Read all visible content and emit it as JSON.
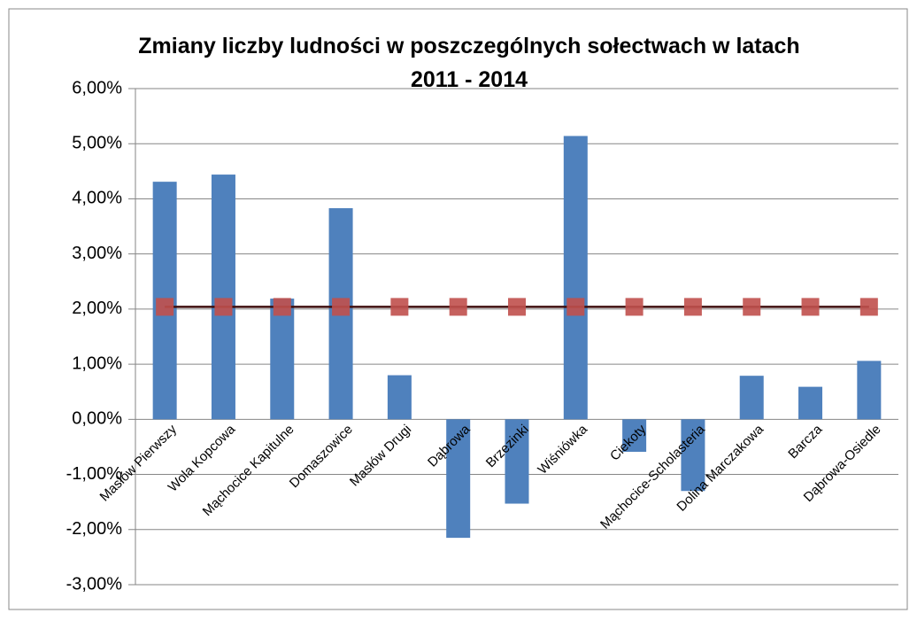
{
  "chart_data": {
    "type": "bar",
    "title": [
      "Zmiany liczby ludności w poszczególnych sołectwach w latach",
      "2011 - 2014"
    ],
    "categories": [
      "Masłów Pierwszy",
      "Wola Kopcowa",
      "Mąchocice Kapitulne",
      "Domaszowice",
      "Masłów Drugi",
      "Dąbrowa",
      "Brzezinki",
      "Wiśniówka",
      "Ciekoty",
      "Mąchocice-Scholasteria",
      "Dolina Marczakowa",
      "Barcza",
      "Dąbrowa-Osiedle"
    ],
    "series": [
      {
        "type": "bar",
        "color": "#4f81bd",
        "values": [
          4.31,
          4.44,
          2.19,
          3.83,
          0.8,
          -2.15,
          -1.53,
          5.14,
          -0.59,
          -1.3,
          0.79,
          0.59,
          1.06
        ]
      },
      {
        "type": "line",
        "color": "#c0504d",
        "line_color": "#3f0f0f",
        "values": [
          2.04,
          2.04,
          2.04,
          2.04,
          2.04,
          2.04,
          2.04,
          2.04,
          2.04,
          2.04,
          2.04,
          2.04,
          2.04
        ]
      }
    ],
    "ylim": [
      -3,
      6
    ],
    "yticks": [
      {
        "value": -3,
        "label": "-3,00%"
      },
      {
        "value": -2,
        "label": "-2,00%"
      },
      {
        "value": -1,
        "label": "-1,00%"
      },
      {
        "value": 0,
        "label": "0,00%"
      },
      {
        "value": 1,
        "label": "1,00%"
      },
      {
        "value": 2,
        "label": "2,00%"
      },
      {
        "value": 3,
        "label": "3,00%"
      },
      {
        "value": 4,
        "label": "4,00%"
      },
      {
        "value": 5,
        "label": "5,00%"
      },
      {
        "value": 6,
        "label": "6,00%"
      }
    ],
    "grid": true
  }
}
